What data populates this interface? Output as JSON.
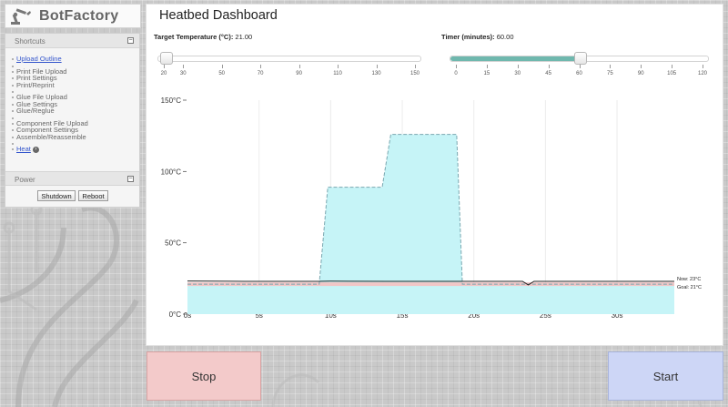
{
  "app": {
    "name": "BotFactory"
  },
  "sidebar": {
    "shortcuts_title": "Shortcuts",
    "items": [
      {
        "label": "Upload Outline",
        "link": true
      },
      {
        "label": "Print File Upload"
      },
      {
        "label": "Print Settings"
      },
      {
        "label": "Print/Reprint"
      },
      {
        "label": "Glue File Upload"
      },
      {
        "label": "Glue Settings"
      },
      {
        "label": "Glue/Reglue"
      },
      {
        "label": "Component File Upload"
      },
      {
        "label": "Component Settings"
      },
      {
        "label": "Assemble/Reassemble"
      },
      {
        "label": "Heat",
        "link": true
      }
    ],
    "power_title": "Power",
    "shutdown_label": "Shutdown",
    "reboot_label": "Reboot",
    "toggle_glyph": "−"
  },
  "dashboard": {
    "title": "Heatbed Dashboard",
    "target_temp": {
      "label": "Target Temperature (°C):",
      "value": "21.00",
      "min": 20,
      "max": 150,
      "current": 21,
      "ticks": [
        "20",
        "30",
        "50",
        "70",
        "90",
        "110",
        "130",
        "150"
      ]
    },
    "timer": {
      "label": "Timer (minutes):",
      "value": "60.00",
      "min": 0,
      "max": 120,
      "current": 60,
      "ticks": [
        "0",
        "15",
        "30",
        "45",
        "60",
        "75",
        "90",
        "105",
        "120"
      ]
    }
  },
  "chart_data": {
    "type": "area",
    "y_ticks": [
      "0°C",
      "50°C",
      "100°C",
      "150°C"
    ],
    "x_ticks": [
      "0s",
      "5s",
      "10s",
      "15s",
      "20s",
      "25s",
      "30s"
    ],
    "ylim": [
      0,
      150
    ],
    "xlim": [
      0,
      34
    ],
    "series": [
      {
        "name": "Goal",
        "color": "#e8a0a0",
        "fill": "#c6f4f7",
        "points": [
          [
            0,
            21
          ],
          [
            9.2,
            21
          ],
          [
            9.2,
            21
          ],
          [
            9.8,
            89
          ],
          [
            13.6,
            89
          ],
          [
            14.2,
            126
          ],
          [
            18.8,
            126
          ],
          [
            19.2,
            21
          ],
          [
            34,
            21
          ]
        ]
      },
      {
        "name": "Now",
        "color": "#222222",
        "points": [
          [
            0,
            23.2
          ],
          [
            4,
            23
          ],
          [
            8,
            23
          ],
          [
            9.1,
            23
          ],
          [
            10,
            23.1
          ],
          [
            14,
            23
          ],
          [
            18,
            23
          ],
          [
            19.2,
            23
          ],
          [
            22,
            23
          ],
          [
            23.4,
            23
          ],
          [
            23.8,
            20.5
          ],
          [
            24.2,
            23
          ],
          [
            28,
            23
          ],
          [
            34,
            23
          ]
        ]
      }
    ],
    "legend": [
      {
        "label": "Now: 23°C"
      },
      {
        "label": "Goal: 21°C"
      }
    ]
  },
  "controls": {
    "stop_label": "Stop",
    "start_label": "Start",
    "stop_color": "#f3caca",
    "start_color": "#cdd6f6"
  }
}
